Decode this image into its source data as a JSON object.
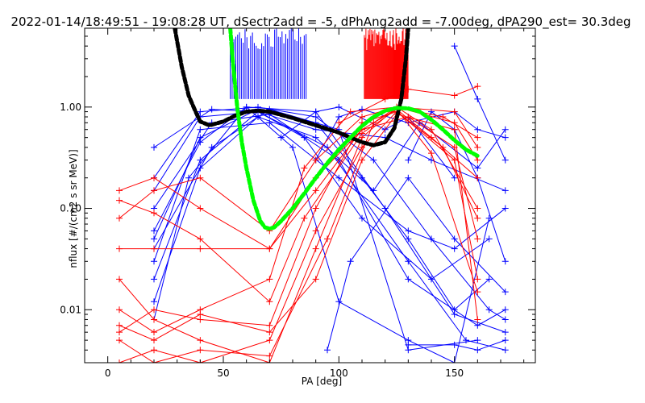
{
  "chart_data": {
    "type": "line",
    "title": "2022-01-14/18:49:51 - 19:08:28 UT, dSectr2add = -5, dPhAng2add = -7.00deg, dPA290_est=  30.3deg",
    "xlabel": "PA [deg]",
    "ylabel": "nflux [#/(cm2 s sr MeV)]",
    "xlim": [
      -10,
      185
    ],
    "ylim": [
      0.003,
      6.0
    ],
    "yscale": "log",
    "xticks": [
      0,
      50,
      100,
      150
    ],
    "xtick_labels": [
      "0",
      "50",
      "100",
      "150"
    ],
    "yticks": [
      0.01,
      0.1,
      1.0
    ],
    "ytick_labels": [
      "0.01",
      "0.10",
      "1.00"
    ],
    "grid": false,
    "legend": "none",
    "colors": {
      "blue": "#0000ff",
      "red": "#ff0000",
      "black": "#000000",
      "green": "#00ff00"
    },
    "series": [
      {
        "color": "blue",
        "style": "line-plus",
        "lines": [
          {
            "x": [
              20,
              40,
              65,
              90,
              110,
              130,
              150,
              165
            ],
            "y": [
              0.05,
              0.5,
              0.95,
              0.7,
              0.2,
              0.05,
              0.01,
              0.02
            ]
          },
          {
            "x": [
              20,
              40,
              65,
              95,
              130,
              155,
              172
            ],
            "y": [
              0.02,
              0.3,
              0.9,
              0.4,
              0.03,
              0.005,
              0.004
            ]
          },
          {
            "x": [
              20,
              45,
              70,
              100,
              130,
              160,
              172
            ],
            "y": [
              0.1,
              0.7,
              0.85,
              0.3,
              0.02,
              0.007,
              0.01
            ]
          },
          {
            "x": [
              20,
              35,
              60,
              90,
              120,
              150,
              172
            ],
            "y": [
              0.008,
              0.2,
              1.0,
              0.9,
              0.1,
              0.009,
              0.006
            ]
          },
          {
            "x": [
              20,
              40,
              65,
              85,
              110,
              140,
              165
            ],
            "y": [
              0.15,
              0.8,
              0.9,
              0.5,
              0.08,
              0.02,
              0.05
            ]
          },
          {
            "x": [
              20,
              45,
              70,
              100,
              130,
              160
            ],
            "y": [
              0.04,
              0.4,
              0.95,
              0.6,
              0.004,
              0.005
            ]
          },
          {
            "x": [
              20,
              40,
              65,
              90,
              115,
              140,
              165,
              172
            ],
            "y": [
              0.2,
              0.9,
              1.0,
              0.8,
              0.3,
              0.05,
              0.01,
              0.008
            ]
          },
          {
            "x": [
              20,
              40,
              70,
              100,
              130,
              150,
              172
            ],
            "y": [
              0.03,
              0.6,
              0.7,
              0.2,
              0.06,
              0.04,
              0.1
            ]
          },
          {
            "x": [
              75,
              90,
              100,
              120,
              130,
              150
            ],
            "y": [
              0.5,
              0.9,
              1.0,
              0.6,
              0.8,
              0.2
            ]
          },
          {
            "x": [
              90,
              100,
              110,
              130,
              150,
              160,
              172
            ],
            "y": [
              0.3,
              0.8,
              0.95,
              0.7,
              0.9,
              0.6,
              0.5
            ]
          },
          {
            "x": [
              130,
              140,
              150,
              160,
              172
            ],
            "y": [
              0.3,
              0.9,
              0.6,
              0.2,
              0.03
            ]
          },
          {
            "x": [
              150,
              160,
              172
            ],
            "y": [
              4.0,
              1.2,
              0.3
            ]
          },
          {
            "x": [
              130,
              150,
              160,
              172
            ],
            "y": [
              0.0045,
              0.0045,
              0.004,
              0.005
            ]
          },
          {
            "x": [
              95,
              105,
              130,
              150,
              172
            ],
            "y": [
              0.004,
              0.03,
              0.2,
              0.05,
              0.015
            ]
          },
          {
            "x": [
              20,
              40,
              60,
              80,
              100,
              130,
              150,
              165
            ],
            "y": [
              0.06,
              0.45,
              1.0,
              0.4,
              0.012,
              0.005,
              0.003,
              0.08
            ]
          },
          {
            "x": [
              20,
              45,
              65,
              90,
              120,
              140,
              172
            ],
            "y": [
              0.4,
              0.95,
              0.9,
              0.6,
              0.5,
              0.3,
              0.15
            ]
          },
          {
            "x": [
              20,
              40,
              65,
              90,
              115,
              135,
              160,
              172
            ],
            "y": [
              0.012,
              0.25,
              0.8,
              0.5,
              0.15,
              0.7,
              0.25,
              0.6
            ]
          }
        ]
      },
      {
        "color": "red",
        "style": "line-plus",
        "lines": [
          {
            "x": [
              5,
              20,
              40,
              70,
              90,
              110,
              125,
              140,
              160
            ],
            "y": [
              0.15,
              0.2,
              0.1,
              0.04,
              0.2,
              0.6,
              0.95,
              0.5,
              0.2
            ]
          },
          {
            "x": [
              5,
              20,
              40,
              70,
              90,
              110,
              125,
              145,
              160
            ],
            "y": [
              0.006,
              0.01,
              0.008,
              0.007,
              0.1,
              0.7,
              0.9,
              0.4,
              0.08
            ]
          },
          {
            "x": [
              5,
              20,
              40,
              70,
              90,
              110,
              125,
              140,
              160
            ],
            "y": [
              0.02,
              0.008,
              0.005,
              0.003,
              0.04,
              0.5,
              1.0,
              0.6,
              0.1
            ]
          },
          {
            "x": [
              5,
              20,
              40,
              70,
              90,
              110,
              125,
              150,
              160
            ],
            "y": [
              0.08,
              0.15,
              0.2,
              0.06,
              0.3,
              0.8,
              1.0,
              0.7,
              0.3
            ]
          },
          {
            "x": [
              5,
              20,
              40,
              70,
              90,
              110,
              125,
              150,
              160
            ],
            "y": [
              0.003,
              0.004,
              0.003,
              0.005,
              0.06,
              0.4,
              0.9,
              0.3,
              0.02
            ]
          },
          {
            "x": [
              5,
              20,
              40,
              70,
              90,
              110,
              130,
              150,
              160
            ],
            "y": [
              0.04,
              0.04,
              0.04,
              0.04,
              0.15,
              0.6,
              0.8,
              0.4,
              0.05
            ]
          },
          {
            "x": [
              5,
              20,
              40,
              70,
              85,
              105,
              125,
              145,
              160
            ],
            "y": [
              0.01,
              0.006,
              0.01,
              0.02,
              0.25,
              0.9,
              1.0,
              0.8,
              0.5
            ]
          },
          {
            "x": [
              5,
              20,
              40,
              70,
              85,
              110,
              125,
              140,
              160
            ],
            "y": [
              0.12,
              0.09,
              0.05,
              0.012,
              0.08,
              0.55,
              0.95,
              0.35,
              0.015
            ]
          },
          {
            "x": [
              5,
              20,
              40,
              70,
              90,
              110,
              125,
              150,
              160
            ],
            "y": [
              0.007,
              0.005,
              0.009,
              0.006,
              0.02,
              0.3,
              0.85,
              0.6,
              0.008
            ]
          },
          {
            "x": [
              5,
              20,
              40,
              70,
              95,
              115,
              125,
              150,
              160
            ],
            "y": [
              0.005,
              0.003,
              0.004,
              0.0035,
              0.05,
              0.7,
              1.0,
              0.9,
              0.4
            ]
          },
          {
            "x": [
              100,
              120,
              130,
              150,
              160
            ],
            "y": [
              0.7,
              1.2,
              1.5,
              1.3,
              1.6
            ]
          }
        ],
        "verticals_x_range": [
          111,
          130
        ],
        "verticals_y_range": [
          1.2,
          6.0
        ]
      },
      {
        "color": "blue",
        "style": "verticals",
        "verticals_x_range": [
          53,
          86
        ],
        "verticals_y_range": [
          1.2,
          6.0
        ]
      },
      {
        "color": "black",
        "style": "dashed-thick",
        "x": [
          29,
          32,
          35,
          38,
          40,
          44,
          50,
          55,
          60,
          65,
          70,
          80,
          90,
          100,
          105,
          110,
          115,
          120,
          124,
          127,
          129,
          130
        ],
        "y": [
          6.0,
          2.5,
          1.3,
          0.9,
          0.72,
          0.66,
          0.72,
          0.82,
          0.9,
          0.92,
          0.9,
          0.78,
          0.66,
          0.56,
          0.5,
          0.45,
          0.42,
          0.45,
          0.62,
          1.2,
          3.0,
          6.0
        ]
      },
      {
        "color": "green",
        "style": "dashed-thick",
        "x": [
          53,
          54,
          56,
          58,
          60,
          63,
          66,
          68,
          70,
          72,
          75,
          80,
          85,
          90,
          95,
          100,
          105,
          110,
          115,
          120,
          125,
          130,
          135,
          140,
          145,
          150,
          155,
          160
        ],
        "y": [
          6.0,
          3.0,
          1.0,
          0.45,
          0.25,
          0.12,
          0.075,
          0.065,
          0.063,
          0.065,
          0.075,
          0.1,
          0.14,
          0.2,
          0.28,
          0.38,
          0.5,
          0.65,
          0.8,
          0.92,
          0.98,
          0.97,
          0.9,
          0.75,
          0.6,
          0.47,
          0.38,
          0.33
        ]
      }
    ]
  }
}
